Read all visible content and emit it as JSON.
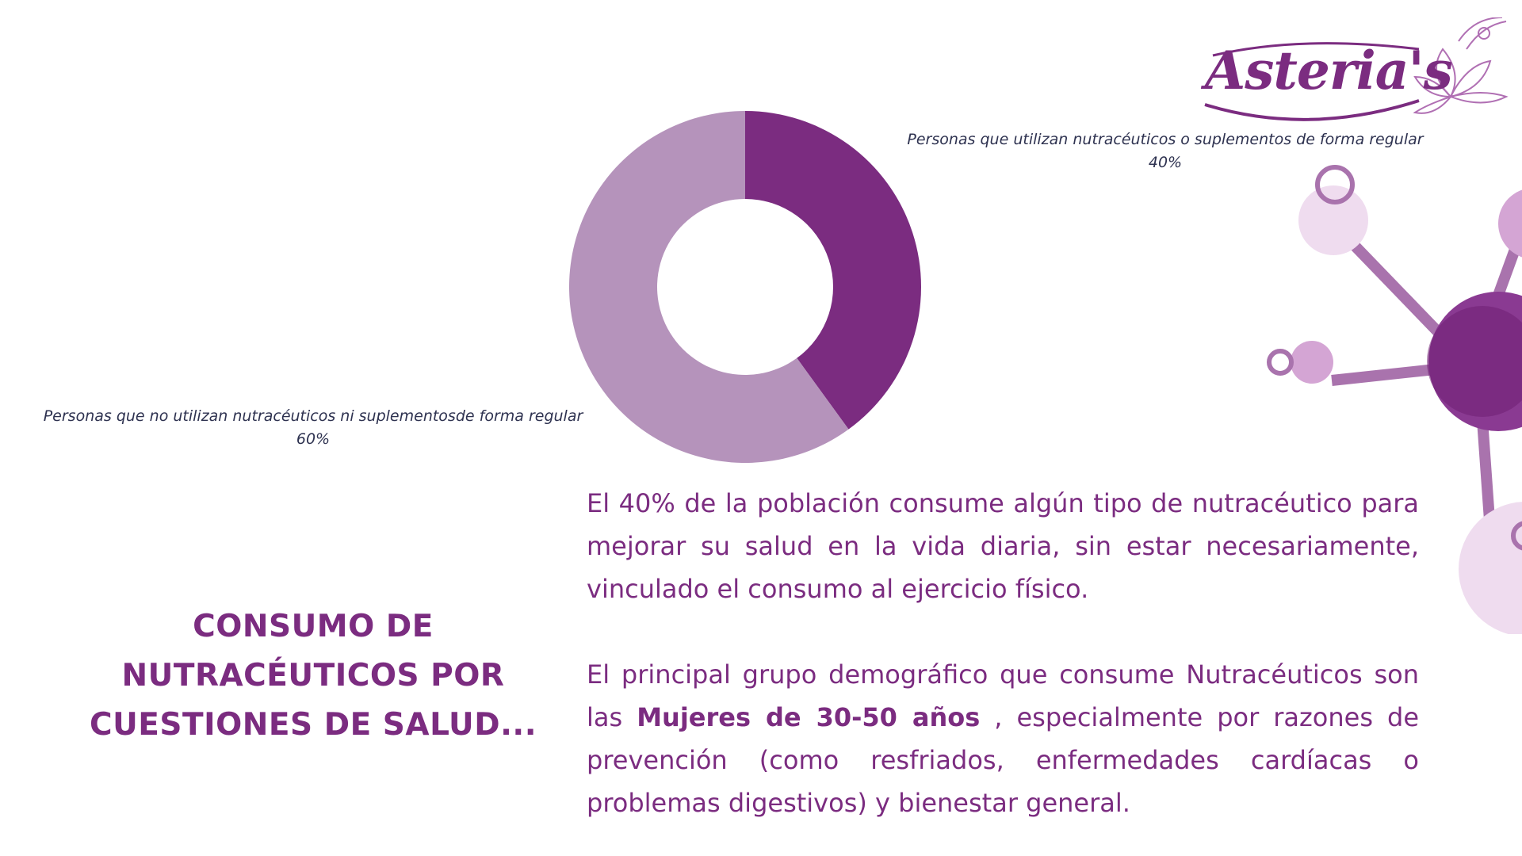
{
  "logo": {
    "text": "Asteria's"
  },
  "chart_data": {
    "type": "pie",
    "variant": "donut",
    "slices": [
      {
        "label": "Personas que utilizan nutracéuticos o suplementos de forma regular",
        "value": 40,
        "display": "40%",
        "color": "#7b2c80"
      },
      {
        "label": "Personas que no utilizan nutracéuticos ni suplementosde forma regular",
        "value": 60,
        "display": "60%",
        "color": "#b593bb"
      }
    ]
  },
  "heading": {
    "line1": "Consumo de",
    "line2": "nutracéuticos por",
    "line3": "cuestiones de salud..."
  },
  "paragraph1": {
    "text": "El 40% de la población consume algún tipo de nutracéutico para mejorar su salud en la vida diaria, sin estar necesariamente, vinculado el consumo al ejercicio físico."
  },
  "paragraph2": {
    "before": "El principal grupo demográfico que consume Nutracéuticos son  las ",
    "bold": "Mujeres de 30-50 años",
    "after": " , especialmente por razones de prevención (como resfriados, enfermedades cardíacas o problemas digestivos) y bienestar general."
  },
  "colors": {
    "primary": "#7b2c80",
    "light": "#b593bb",
    "pale": "#efdcef",
    "mid": "#d4a5d4",
    "label_text": "#2e3250"
  }
}
